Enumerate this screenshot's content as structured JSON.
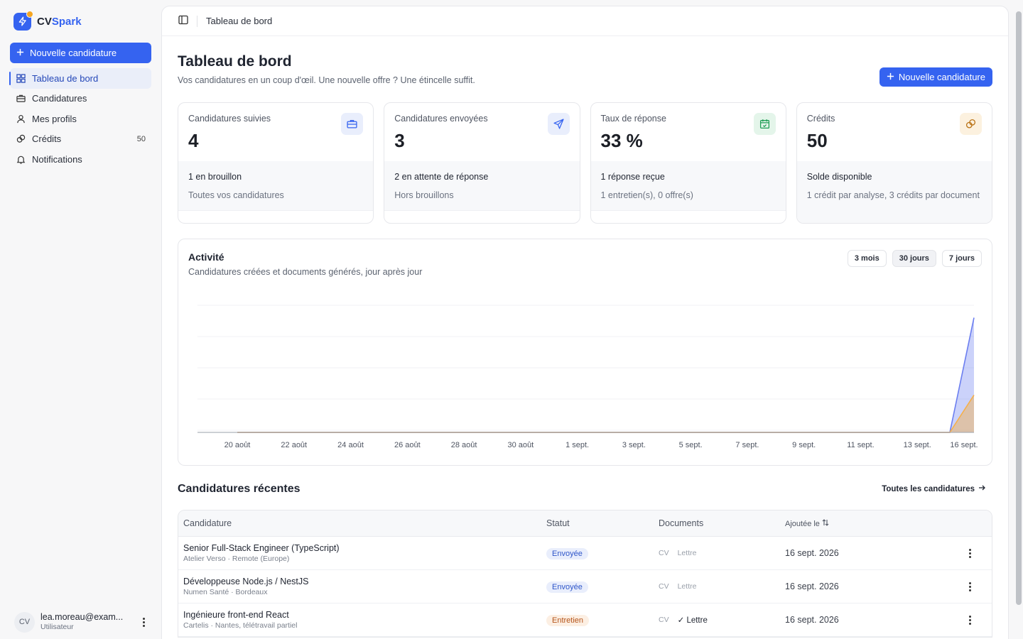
{
  "brand": {
    "name_prefix": "CV",
    "name_suffix": "Spark"
  },
  "sidebar": {
    "new_button": "Nouvelle candidature",
    "items": [
      {
        "label": "Tableau de bord",
        "badge": ""
      },
      {
        "label": "Candidatures",
        "badge": ""
      },
      {
        "label": "Mes profils",
        "badge": ""
      },
      {
        "label": "Crédits",
        "badge": "50"
      },
      {
        "label": "Notifications",
        "badge": ""
      }
    ],
    "user": {
      "initials": "CV",
      "email": "lea.moreau@exam...",
      "role": "Utilisateur"
    }
  },
  "topbar": {
    "title": "Tableau de bord"
  },
  "page": {
    "title": "Tableau de bord",
    "subtitle": "Vos candidatures en un coup d'œil. Une nouvelle offre ? Une étincelle suffit.",
    "new_button": "Nouvelle candidature"
  },
  "stats": [
    {
      "label": "Candidatures suivies",
      "value": "4",
      "strong": "1 en brouillon",
      "muted": "Toutes vos candidatures",
      "icon": "briefcase-icon",
      "color": "#3563f0"
    },
    {
      "label": "Candidatures envoyées",
      "value": "3",
      "strong": "2 en attente de réponse",
      "muted": "Hors brouillons",
      "icon": "send-icon",
      "color": "#3563f0"
    },
    {
      "label": "Taux de réponse",
      "value": "33 %",
      "strong": "1 réponse reçue",
      "muted": "1 entretien(s), 0 offre(s)",
      "icon": "calendar-check-icon",
      "color": "#1f9d55"
    },
    {
      "label": "Crédits",
      "value": "50",
      "strong": "Solde disponible",
      "muted": "1 crédit par analyse, 3 crédits par document",
      "icon": "coins-icon",
      "color": "#d98a1c"
    }
  ],
  "activity": {
    "title": "Activité",
    "subtitle": "Candidatures créées et documents générés, jour après jour",
    "ranges": [
      "3 mois",
      "30 jours",
      "7 jours"
    ],
    "selected_range": "30 jours"
  },
  "chart_data": {
    "type": "area",
    "x": [
      "20 août",
      "22 août",
      "24 août",
      "26 août",
      "28 août",
      "30 août",
      "1 sept.",
      "3 sept.",
      "5 sept.",
      "7 sept.",
      "9 sept.",
      "11 sept.",
      "13 sept.",
      "16 sept."
    ],
    "series": [
      {
        "values": [
          0,
          0,
          0,
          0,
          0,
          0,
          0,
          0,
          0,
          0,
          0,
          0,
          0,
          4
        ],
        "color": "#6b7ef0"
      },
      {
        "values": [
          0,
          0,
          0,
          0,
          0,
          0,
          0,
          0,
          0,
          0,
          0,
          0,
          0,
          1.3
        ],
        "color": "#f5b04a"
      }
    ],
    "ylim": [
      0,
      5
    ],
    "grid": true
  },
  "recent": {
    "title": "Candidatures récentes",
    "link": "Toutes les candidatures",
    "columns": [
      "Candidature",
      "Statut",
      "Documents",
      "Ajoutée le"
    ],
    "rows": [
      {
        "title": "Senior Full-Stack Engineer (TypeScript)",
        "meta": "Atelier Verso · Remote (Europe)",
        "status": "Envoyée",
        "status_kind": "sent",
        "doc_cv": "CV",
        "doc_letter": "Lettre",
        "letter_ok": false,
        "date": "16 sept. 2026"
      },
      {
        "title": "Développeuse Node.js / NestJS",
        "meta": "Numen Santé · Bordeaux",
        "status": "Envoyée",
        "status_kind": "sent",
        "doc_cv": "CV",
        "doc_letter": "Lettre",
        "letter_ok": false,
        "date": "16 sept. 2026"
      },
      {
        "title": "Ingénieure front-end React",
        "meta": "Cartelis · Nantes, télétravail partiel",
        "status": "Entretien",
        "status_kind": "interview",
        "doc_cv": "CV",
        "doc_letter": "Lettre",
        "letter_ok": true,
        "date": "16 sept. 2026"
      }
    ]
  }
}
